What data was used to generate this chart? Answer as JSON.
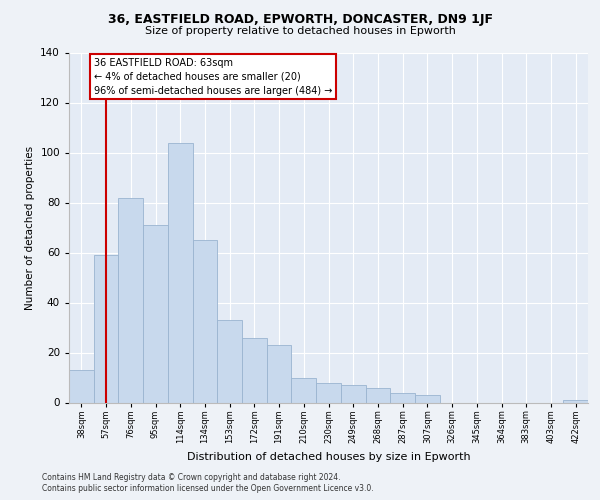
{
  "title1": "36, EASTFIELD ROAD, EPWORTH, DONCASTER, DN9 1JF",
  "title2": "Size of property relative to detached houses in Epworth",
  "xlabel": "Distribution of detached houses by size in Epworth",
  "ylabel": "Number of detached properties",
  "bar_labels": [
    "38sqm",
    "57sqm",
    "76sqm",
    "95sqm",
    "114sqm",
    "134sqm",
    "153sqm",
    "172sqm",
    "191sqm",
    "210sqm",
    "230sqm",
    "249sqm",
    "268sqm",
    "287sqm",
    "307sqm",
    "326sqm",
    "345sqm",
    "364sqm",
    "383sqm",
    "403sqm",
    "422sqm"
  ],
  "bar_values": [
    13,
    59,
    82,
    71,
    104,
    65,
    33,
    26,
    23,
    10,
    8,
    7,
    6,
    4,
    3,
    0,
    0,
    0,
    0,
    0,
    1
  ],
  "bar_color": "#c8d9ed",
  "bar_edge_color": "#9ab4d0",
  "vline_x": 1.0,
  "vline_color": "#cc0000",
  "annotation_title": "36 EASTFIELD ROAD: 63sqm",
  "annotation_line1": "← 4% of detached houses are smaller (20)",
  "annotation_line2": "96% of semi-detached houses are larger (484) →",
  "annotation_box_color": "#ffffff",
  "annotation_box_edge": "#cc0000",
  "footer1": "Contains HM Land Registry data © Crown copyright and database right 2024.",
  "footer2": "Contains public sector information licensed under the Open Government Licence v3.0.",
  "ylim": [
    0,
    140
  ],
  "yticks": [
    0,
    20,
    40,
    60,
    80,
    100,
    120,
    140
  ],
  "bg_color": "#eef2f7",
  "plot_bg_color": "#e4ebf5"
}
